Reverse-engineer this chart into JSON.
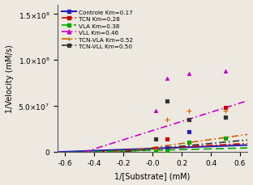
{
  "series": [
    {
      "label": "Controle Km=0.17",
      "color": "#2222bb",
      "linestyle": "solid",
      "marker": "s",
      "slope": 5880000.0,
      "intercept": 3460000.0,
      "scatter_x": [
        0.02,
        0.1,
        0.25,
        0.5
      ],
      "scatter_y": [
        3500000.0,
        4500000.0,
        22000000.0,
        38000000.0
      ]
    },
    {
      "label": "TCN Km=0.28",
      "color": "#cc0000",
      "linestyle": "dashdot",
      "marker": "s",
      "slope": 9000000.0,
      "intercept": 3200000.0,
      "scatter_x": [
        0.02,
        0.1,
        0.25,
        0.5
      ],
      "scatter_y": [
        3000000.0,
        14000000.0,
        35000000.0,
        48000000.0
      ]
    },
    {
      "label": "VLA Km=0.38",
      "color": "#00aa00",
      "linestyle": "dashed",
      "marker": "s",
      "slope": 4000000.0,
      "intercept": 1500000.0,
      "scatter_x": [
        0.02,
        0.1,
        0.25,
        0.5
      ],
      "scatter_y": [
        500000.0,
        500000.0,
        10000000.0,
        15000000.0
      ]
    },
    {
      "label": "VLL Km=0.46",
      "color": "#cc00cc",
      "linestyle": "dashdot",
      "marker": "^",
      "slope": 50000000.0,
      "intercept": 23000000.0,
      "scatter_x": [
        0.02,
        0.1,
        0.25,
        0.5
      ],
      "scatter_y": [
        45000000.0,
        80000000.0,
        85000000.0,
        88000000.0
      ]
    },
    {
      "label": "TCN-VLA Km=0.52",
      "color": "#cc6600",
      "linestyle": "dashdot",
      "marker": "+",
      "slope": 22000000.0,
      "intercept": 4500000.0,
      "scatter_x": [
        0.02,
        0.1,
        0.25,
        0.5
      ],
      "scatter_y": [
        3500000.0,
        35000000.0,
        45000000.0,
        45000000.0
      ]
    },
    {
      "label": "TCN-VLL Km=0.50",
      "color": "#333333",
      "linestyle": "dashdot",
      "marker": "s",
      "slope": 15000000.0,
      "intercept": 3000000.0,
      "scatter_x": [
        0.02,
        0.1,
        0.25,
        0.5
      ],
      "scatter_y": [
        14000000.0,
        55000000.0,
        35000000.0,
        38000000.0
      ]
    }
  ],
  "xlim": [
    -0.65,
    0.65
  ],
  "ylim": [
    0,
    160000000.0
  ],
  "xlabel": "1/[Substrate] (mM)",
  "ylabel": "1/Velocity (mM/s)",
  "x_line_start": -0.65,
  "x_line_end": 0.65,
  "yticks": [
    0,
    50000000.0,
    100000000.0,
    150000000.0
  ],
  "ytick_labels": [
    "0",
    "5.0×10⁷",
    "1.0×10⁸",
    "1.5×10⁸"
  ],
  "xticks": [
    -0.6,
    -0.4,
    -0.2,
    -0.0,
    0.2,
    0.4,
    0.6
  ],
  "xtick_labels": [
    "-0.6",
    "-0.4",
    "-0.2",
    "-0.0",
    "0.2",
    "0.4",
    "0.6"
  ],
  "bg_color": "#ede8e0"
}
